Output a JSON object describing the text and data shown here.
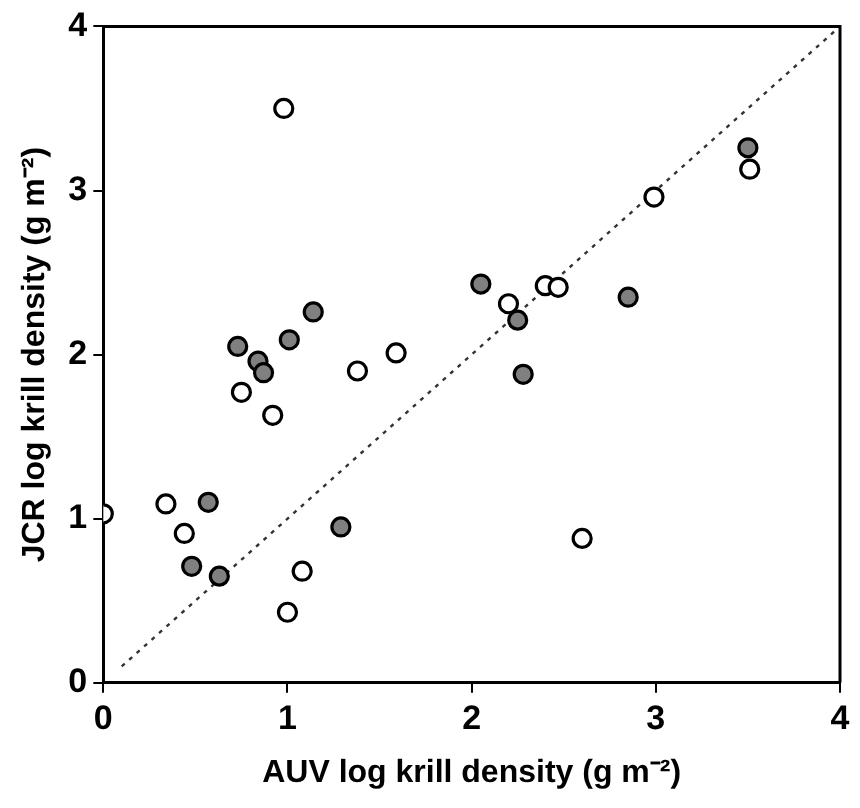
{
  "chart_data": {
    "type": "scatter",
    "xlabel": "AUV log krill density (g m⁻²)",
    "ylabel": "JCR log krill density (g m⁻²)",
    "xlim": [
      0,
      4
    ],
    "ylim": [
      0,
      4
    ],
    "xticks": [
      0,
      1,
      2,
      3,
      4
    ],
    "yticks": [
      0,
      1,
      2,
      3,
      4
    ],
    "grid": false,
    "legend": false,
    "marker": "circle",
    "series": [
      {
        "color": "#ffffff",
        "x": [
          0,
          0.34,
          0.44,
          0.98,
          0.75,
          0.92,
          1.38,
          1.59,
          1.08,
          1.0,
          2.2,
          2.4,
          2.47,
          2.6,
          2.99,
          3.51
        ],
        "values": [
          1.03,
          1.09,
          0.91,
          3.5,
          1.77,
          1.63,
          1.9,
          2.01,
          0.68,
          0.43,
          2.31,
          2.42,
          2.41,
          0.88,
          2.96,
          3.13
        ]
      },
      {
        "color": "#808080",
        "x": [
          0.57,
          0.48,
          0.63,
          0.73,
          0.84,
          0.87,
          1.01,
          1.14,
          1.29,
          2.05,
          2.25,
          2.28,
          2.85,
          3.5
        ],
        "values": [
          1.1,
          0.71,
          0.65,
          2.05,
          1.96,
          1.89,
          2.09,
          2.26,
          0.95,
          2.43,
          2.21,
          1.88,
          2.35,
          3.26
        ]
      },
      {
        "type": "line",
        "color": "#333333",
        "line_style": "dotted",
        "marker": "none",
        "x": [
          0.1,
          4
        ],
        "values": [
          0.1,
          4
        ]
      }
    ]
  }
}
